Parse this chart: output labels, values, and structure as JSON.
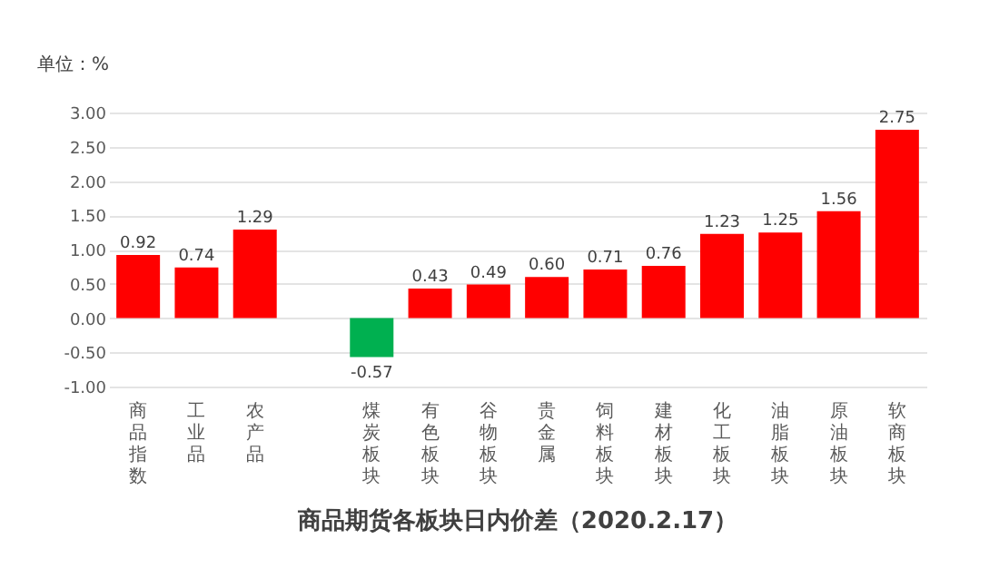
{
  "chart_data": {
    "type": "bar",
    "title": "商品期货各板块日内价差（2020.2.17）",
    "ylabel": "单位：%",
    "categories": [
      "商品指数",
      "工业品",
      "农产品",
      null,
      "煤炭板块",
      "有色板块",
      "谷物板块",
      "贵金属",
      "饲料板块",
      "建材板块",
      "化工板块",
      "油脂板块",
      "原油板块",
      "软商板块"
    ],
    "values": [
      0.92,
      0.74,
      1.29,
      null,
      -0.57,
      0.43,
      0.49,
      0.6,
      0.71,
      0.76,
      1.23,
      1.25,
      1.56,
      2.75
    ],
    "colors": [
      "#ff0000",
      "#ff0000",
      "#ff0000",
      "#ff0000",
      "#00b050",
      "#ff0000",
      "#ff0000",
      "#ff0000",
      "#ff0000",
      "#ff0000",
      "#ff0000",
      "#ff0000",
      "#ff0000",
      "#ff0000"
    ],
    "ylim": [
      -1.0,
      3.0
    ],
    "yticks": [
      {
        "value": -1,
        "label": "-1.00"
      },
      {
        "value": -0.5,
        "label": "-0.50"
      },
      {
        "value": 0,
        "label": "0.00"
      },
      {
        "value": 0.5,
        "label": "0.50"
      },
      {
        "value": 1,
        "label": "1.00"
      },
      {
        "value": 1.5,
        "label": "1.50"
      },
      {
        "value": 2,
        "label": "2.00"
      },
      {
        "value": 2.5,
        "label": "2.50"
      },
      {
        "value": 3,
        "label": "3.00"
      }
    ],
    "value_labels": [
      "0.92",
      "0.74",
      "1.29",
      null,
      "-0.57",
      "0.43",
      "0.49",
      "0.60",
      "0.71",
      "0.76",
      "1.23",
      "1.25",
      "1.56",
      "2.75"
    ],
    "legend": false,
    "grid": "y"
  }
}
